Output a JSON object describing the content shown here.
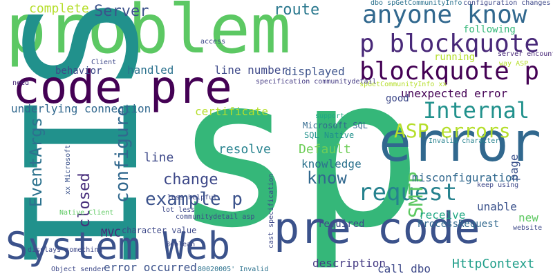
{
  "words": [
    {
      "text": "problem",
      "color": "#5cc863"
    },
    {
      "text": "IIS",
      "color": "#21918c"
    },
    {
      "text": "sp",
      "color": "#35b779"
    },
    {
      "text": "error",
      "color": "#31688e"
    },
    {
      "text": "code pre",
      "color": "#440154"
    },
    {
      "text": "pre code",
      "color": "#3b528b"
    },
    {
      "text": "System Web",
      "color": "#3b528b"
    },
    {
      "text": "anyone know",
      "color": "#31688e"
    },
    {
      "text": "p blockquote",
      "color": "#482878"
    },
    {
      "text": "blockquote p",
      "color": "#440154"
    },
    {
      "text": "request",
      "color": "#26828e"
    },
    {
      "text": "Internal",
      "color": "#21918c"
    },
    {
      "text": "ASP errors",
      "color": "#b5de2b"
    },
    {
      "text": "SMTP",
      "color": "#5ec962"
    },
    {
      "text": "example p",
      "color": "#3b528b"
    },
    {
      "text": "configure",
      "color": "#31688e"
    },
    {
      "text": "EventArgs",
      "color": "#2c728e"
    },
    {
      "text": "closed",
      "color": "#472d7b"
    },
    {
      "text": "change",
      "color": "#3e4989"
    },
    {
      "text": "know",
      "color": "#31688e"
    },
    {
      "text": "Server",
      "color": "#3b528b"
    },
    {
      "text": "route",
      "color": "#2a788e"
    },
    {
      "text": "complete",
      "color": "#b5de2b"
    },
    {
      "text": "underlying connection",
      "color": "#31688e"
    },
    {
      "text": "handled",
      "color": "#2c728e"
    },
    {
      "text": "behavior",
      "color": "#3e4989"
    },
    {
      "text": "line number",
      "color": "#3e4989"
    },
    {
      "text": "displayed",
      "color": "#3b528b"
    },
    {
      "text": "certificate",
      "color": "#b5de2b"
    },
    {
      "text": "unexpected error",
      "color": "#440154"
    },
    {
      "text": "good",
      "color": "#3e4989"
    },
    {
      "text": "running",
      "color": "#b5de2b"
    },
    {
      "text": "following",
      "color": "#35b779"
    },
    {
      "text": "Default",
      "color": "#6ece58"
    },
    {
      "text": "resolve",
      "color": "#26828e"
    },
    {
      "text": "line",
      "color": "#3e4989"
    },
    {
      "text": "knowledge",
      "color": "#2c728e"
    },
    {
      "text": "misconfiguration",
      "color": "#31688e"
    },
    {
      "text": "unable",
      "color": "#3b528b"
    },
    {
      "text": "receive",
      "color": "#22a884"
    },
    {
      "text": "new",
      "color": "#5ec962"
    },
    {
      "text": "ProcessRequest",
      "color": "#31688e"
    },
    {
      "text": "required",
      "color": "#3e4989"
    },
    {
      "text": "HttpContext",
      "color": "#1f9e89"
    },
    {
      "text": "description",
      "color": "#443a83"
    },
    {
      "text": "call dbo",
      "color": "#3e4989"
    },
    {
      "text": "error occurred",
      "color": "#3b528b"
    },
    {
      "text": "MVC",
      "color": "#482878"
    },
    {
      "text": "character value",
      "color": "#3e4989"
    },
    {
      "text": "page",
      "color": "#3b528b"
    },
    {
      "text": "Microsoft SQL",
      "color": "#31688e"
    },
    {
      "text": "SQL Native",
      "color": "#21918c"
    },
    {
      "text": "Invalid character",
      "color": "#26828e"
    },
    {
      "text": "spGetCommunityInfo xx",
      "color": "#b5de2b"
    },
    {
      "text": "dbo spGetCommunityInfo",
      "color": "#2c728e"
    },
    {
      "text": "configuration changes",
      "color": "#3e4989"
    },
    {
      "text": "specification communitydetail",
      "color": "#443a83"
    },
    {
      "text": "cast specification",
      "color": "#3e4989"
    },
    {
      "text": "xx Microsoft",
      "color": "#3b528b"
    },
    {
      "text": "Native Client",
      "color": "#5ec962"
    },
    {
      "text": "80020005' Invalid",
      "color": "#2c728e"
    },
    {
      "text": "Object sender",
      "color": "#3e4989"
    },
    {
      "text": "displays something",
      "color": "#3e4989"
    },
    {
      "text": "lot less",
      "color": "#3e4989"
    },
    {
      "text": "less helpful",
      "color": "#3e4989"
    },
    {
      "text": "server encountered",
      "color": "#482878"
    },
    {
      "text": "way ASP",
      "color": "#b5de2b"
    },
    {
      "text": "communitydetail asp",
      "color": "#3e4989"
    },
    {
      "text": "need",
      "color": "#482878"
    },
    {
      "text": "Client",
      "color": "#3e4989"
    },
    {
      "text": "support",
      "color": "#22a884"
    },
    {
      "text": "access",
      "color": "#3e4989"
    },
    {
      "text": "Boolean",
      "color": "#3e4989"
    },
    {
      "text": "keep using",
      "color": "#3e4989"
    },
    {
      "text": "website",
      "color": "#3e4989"
    }
  ]
}
